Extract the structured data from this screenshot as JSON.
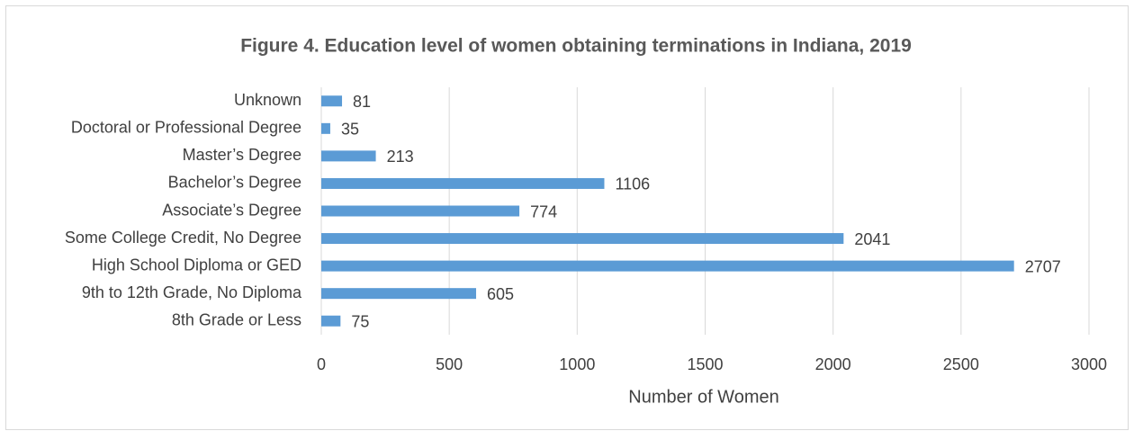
{
  "chart_data": {
    "type": "barh",
    "title": "Figure 4. Education level of women obtaining terminations in Indiana, 2019",
    "categories": [
      "Unknown",
      "Doctoral or Professional Degree",
      "Master’s Degree",
      "Bachelor’s Degree",
      "Associate’s Degree",
      "Some College Credit, No Degree",
      "High School Diploma or GED",
      "9th to 12th Grade, No Diploma",
      "8th Grade or Less"
    ],
    "values": [
      81,
      35,
      213,
      1106,
      774,
      2041,
      2707,
      605,
      75
    ],
    "color": "#5b9bd5",
    "xlabel": "Number of Women",
    "xlim": [
      0,
      3000
    ],
    "xticks": [
      0,
      500,
      1000,
      1500,
      2000,
      2500,
      3000
    ],
    "grid": true
  }
}
